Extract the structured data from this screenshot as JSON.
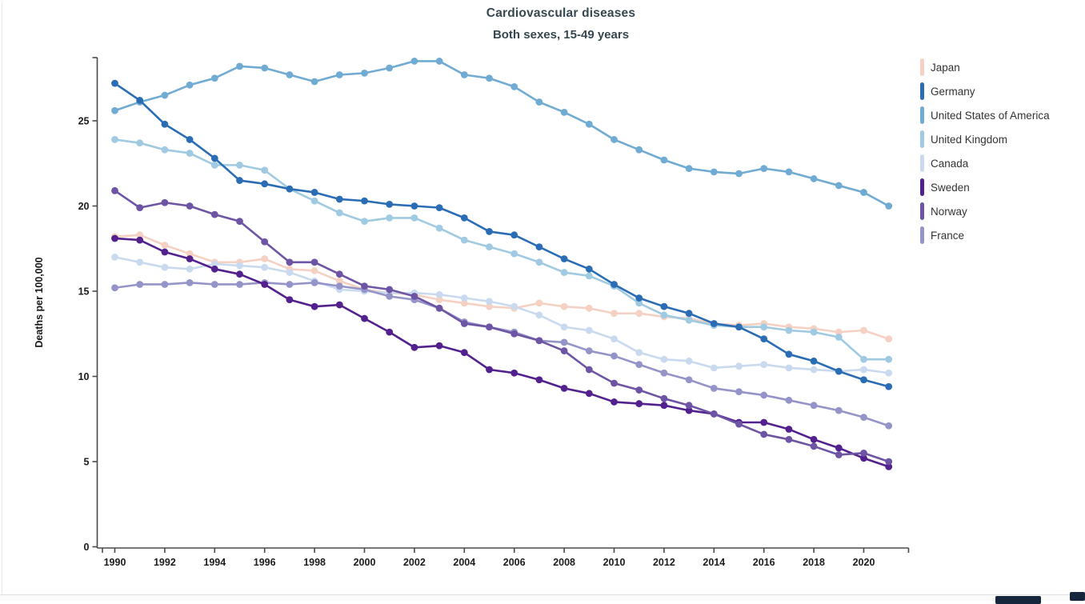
{
  "header": {
    "title": "Cardiovascular diseases",
    "subtitle": "Both sexes, 15-49 years"
  },
  "chart_data": {
    "type": "line",
    "title": "Cardiovascular diseases",
    "subtitle": "Both sexes, 15-49 years",
    "ylabel": "Deaths per 100,000",
    "xlabel": "",
    "grid": false,
    "legend_position": "right",
    "ylim": [
      0,
      28.8
    ],
    "y_ticks": [
      0,
      5,
      10,
      15,
      20,
      25
    ],
    "x_ticks": [
      1990,
      1992,
      1994,
      1996,
      1998,
      2000,
      2002,
      2004,
      2006,
      2008,
      2010,
      2012,
      2014,
      2016,
      2018,
      2020
    ],
    "x": [
      1990,
      1991,
      1992,
      1993,
      1994,
      1995,
      1996,
      1997,
      1998,
      1999,
      2000,
      2001,
      2002,
      2003,
      2004,
      2005,
      2006,
      2007,
      2008,
      2009,
      2010,
      2011,
      2012,
      2013,
      2014,
      2015,
      2016,
      2017,
      2018,
      2019,
      2020,
      2021
    ],
    "series": [
      {
        "name": "Japan",
        "color": "#f5d1c3",
        "values": [
          18.2,
          18.3,
          17.7,
          17.2,
          16.7,
          16.7,
          16.9,
          16.3,
          16.2,
          15.6,
          15.1,
          14.9,
          14.8,
          14.5,
          14.3,
          14.1,
          14.0,
          14.3,
          14.1,
          14.0,
          13.7,
          13.7,
          13.5,
          13.4,
          13.1,
          13.0,
          13.1,
          12.9,
          12.8,
          12.6,
          12.7,
          12.2
        ]
      },
      {
        "name": "Germany",
        "color": "#2a6db4",
        "values": [
          27.2,
          26.2,
          24.8,
          23.9,
          22.8,
          21.5,
          21.3,
          21.0,
          20.8,
          20.4,
          20.3,
          20.1,
          20.0,
          19.9,
          19.3,
          18.5,
          18.3,
          17.6,
          16.9,
          16.3,
          15.4,
          14.6,
          14.1,
          13.7,
          13.1,
          12.9,
          12.2,
          11.3,
          10.9,
          10.3,
          9.8,
          9.4
        ]
      },
      {
        "name": "United States of America",
        "color": "#6fabd3",
        "values": [
          25.6,
          26.1,
          26.5,
          27.1,
          27.5,
          28.2,
          28.1,
          27.7,
          27.3,
          27.7,
          27.8,
          28.1,
          28.5,
          28.5,
          27.7,
          27.5,
          27.0,
          26.1,
          25.5,
          24.8,
          23.9,
          23.3,
          22.7,
          22.2,
          22.0,
          21.9,
          22.2,
          22.0,
          21.6,
          21.2,
          20.8,
          20.0
        ]
      },
      {
        "name": "United Kingdom",
        "color": "#9fcae1",
        "values": [
          23.9,
          23.7,
          23.3,
          23.1,
          22.4,
          22.4,
          22.1,
          21.0,
          20.3,
          19.6,
          19.1,
          19.3,
          19.3,
          18.7,
          18.0,
          17.6,
          17.2,
          16.7,
          16.1,
          15.9,
          15.3,
          14.3,
          13.6,
          13.3,
          13.0,
          12.9,
          12.9,
          12.7,
          12.6,
          12.3,
          11.0,
          11.0
        ]
      },
      {
        "name": "Canada",
        "color": "#c9daef",
        "values": [
          17.0,
          16.7,
          16.4,
          16.3,
          16.6,
          16.5,
          16.4,
          16.1,
          15.6,
          15.1,
          15.0,
          14.9,
          14.9,
          14.8,
          14.6,
          14.4,
          14.1,
          13.6,
          12.9,
          12.7,
          12.2,
          11.4,
          11.0,
          10.9,
          10.5,
          10.6,
          10.7,
          10.5,
          10.4,
          10.3,
          10.4,
          10.2
        ]
      },
      {
        "name": "Sweden",
        "color": "#53218e",
        "values": [
          18.1,
          18.0,
          17.3,
          16.9,
          16.3,
          16.0,
          15.4,
          14.5,
          14.1,
          14.2,
          13.4,
          12.6,
          11.7,
          11.8,
          11.4,
          10.4,
          10.2,
          9.8,
          9.3,
          9.0,
          8.5,
          8.4,
          8.3,
          8.0,
          7.8,
          7.3,
          7.3,
          6.9,
          6.3,
          5.8,
          5.2,
          4.7
        ]
      },
      {
        "name": "Norway",
        "color": "#6e54a4",
        "values": [
          20.9,
          19.9,
          20.2,
          20.0,
          19.5,
          19.1,
          17.9,
          16.7,
          16.7,
          16.0,
          15.3,
          15.1,
          14.7,
          14.0,
          13.1,
          12.9,
          12.5,
          12.1,
          11.5,
          10.4,
          9.6,
          9.2,
          8.7,
          8.3,
          7.8,
          7.2,
          6.6,
          6.3,
          5.9,
          5.4,
          5.5,
          5.0
        ]
      },
      {
        "name": "France",
        "color": "#9594c9",
        "values": [
          15.2,
          15.4,
          15.4,
          15.5,
          15.4,
          15.4,
          15.5,
          15.4,
          15.5,
          15.3,
          15.1,
          14.7,
          14.5,
          14.0,
          13.2,
          12.9,
          12.6,
          12.1,
          12.0,
          11.5,
          11.2,
          10.7,
          10.2,
          9.8,
          9.3,
          9.1,
          8.9,
          8.6,
          8.3,
          8.0,
          7.6,
          7.1
        ]
      }
    ],
    "draw_order": [
      "Japan",
      "Canada",
      "United Kingdom",
      "United States of America",
      "France",
      "Sweden",
      "Norway",
      "Germany"
    ]
  },
  "bottom_bar": {
    "button_color": "#16263d"
  }
}
